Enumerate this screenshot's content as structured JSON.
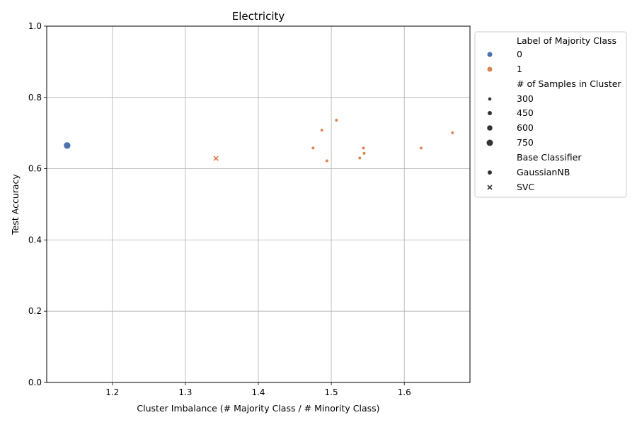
{
  "chart_data": {
    "type": "scatter",
    "title": "Electricity",
    "xlabel": "Cluster Imbalance (# Majority Class / # Minority Class)",
    "ylabel": "Test Accuracy",
    "xlim": [
      1.11,
      1.69
    ],
    "ylim": [
      0.0,
      1.0
    ],
    "x_ticks": [
      1.2,
      1.3,
      1.4,
      1.5,
      1.6
    ],
    "y_ticks": [
      0.0,
      0.2,
      0.4,
      0.6,
      0.8,
      1.0
    ],
    "grid": true,
    "legend_placement": "outside-upper-right",
    "hue_colors": {
      "0": "#4c72b0",
      "1": "#dd8452"
    },
    "legend": {
      "hue_title": "Label of Majority Class",
      "hue_entries": [
        {
          "label": "0",
          "color": "#4c72b0"
        },
        {
          "label": "1",
          "color": "#dd8452"
        }
      ],
      "size_title": "# of Samples in Cluster",
      "size_entries": [
        {
          "label": "300",
          "value": 300
        },
        {
          "label": "450",
          "value": 450
        },
        {
          "label": "600",
          "value": 600
        },
        {
          "label": "750",
          "value": 750
        }
      ],
      "style_title": "Base Classifier",
      "style_entries": [
        {
          "label": "GaussianNB",
          "marker": "circle"
        },
        {
          "label": "SVC",
          "marker": "x"
        }
      ]
    },
    "points": [
      {
        "x": 1.138,
        "y": 0.665,
        "label": 0,
        "samples": 760,
        "classifier": "GaussianNB"
      },
      {
        "x": 1.342,
        "y": 0.629,
        "label": 1,
        "samples": 320,
        "classifier": "SVC"
      },
      {
        "x": 1.475,
        "y": 0.658,
        "label": 1,
        "samples": 300,
        "classifier": "GaussianNB"
      },
      {
        "x": 1.487,
        "y": 0.708,
        "label": 1,
        "samples": 300,
        "classifier": "GaussianNB"
      },
      {
        "x": 1.494,
        "y": 0.622,
        "label": 1,
        "samples": 300,
        "classifier": "GaussianNB"
      },
      {
        "x": 1.507,
        "y": 0.736,
        "label": 1,
        "samples": 300,
        "classifier": "GaussianNB"
      },
      {
        "x": 1.539,
        "y": 0.63,
        "label": 1,
        "samples": 300,
        "classifier": "GaussianNB"
      },
      {
        "x": 1.544,
        "y": 0.658,
        "label": 1,
        "samples": 300,
        "classifier": "GaussianNB"
      },
      {
        "x": 1.545,
        "y": 0.643,
        "label": 1,
        "samples": 300,
        "classifier": "GaussianNB"
      },
      {
        "x": 1.623,
        "y": 0.658,
        "label": 1,
        "samples": 300,
        "classifier": "GaussianNB"
      },
      {
        "x": 1.666,
        "y": 0.701,
        "label": 1,
        "samples": 300,
        "classifier": "GaussianNB"
      }
    ]
  }
}
